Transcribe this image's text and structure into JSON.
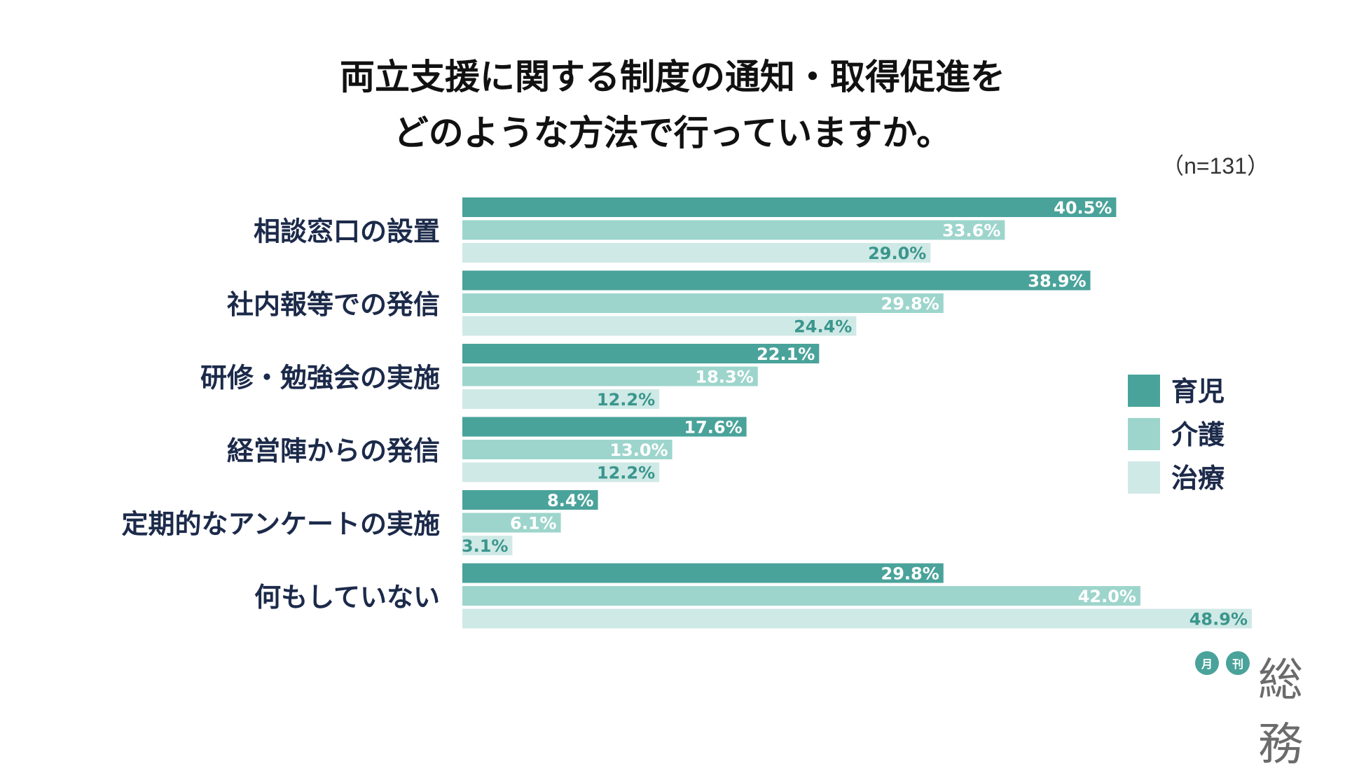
{
  "title_lines": [
    "両立支援に関する制度の通知・取得促進を",
    "どのような方法で行っていますか。"
  ],
  "n_label": "（n=131）",
  "logo": {
    "badge1": "月",
    "badge2": "刊",
    "word": "総務"
  },
  "colors": {
    "育児": "#4aa39a",
    "介護": "#9dd5cc",
    "治療": "#cfe9e6",
    "category_text": "#1c2a4a",
    "label_dark": "#ffffff",
    "label_light": "#3a968c"
  },
  "chart_data": {
    "type": "bar",
    "orientation": "horizontal",
    "categories": [
      "相談窓口の設置",
      "社内報等での発信",
      "研修・勉強会の実施",
      "経営陣からの発信",
      "定期的なアンケートの実施",
      "何もしていない"
    ],
    "series": [
      {
        "name": "育児",
        "values": [
          40.5,
          38.9,
          22.1,
          17.6,
          8.4,
          29.8
        ]
      },
      {
        "name": "介護",
        "values": [
          33.6,
          29.8,
          18.3,
          13.0,
          6.1,
          42.0
        ]
      },
      {
        "name": "治療",
        "values": [
          29.0,
          24.4,
          12.2,
          12.2,
          3.1,
          48.9
        ]
      }
    ],
    "value_labels": [
      [
        "40.5%",
        "38.9%",
        "22.1%",
        "17.6%",
        "8.4%",
        "29.8%"
      ],
      [
        "33.6%",
        "29.8%",
        "18.3%",
        "13.0%",
        "6.1%",
        "42.0%"
      ],
      [
        "29.0%",
        "24.4%",
        "12.2%",
        "12.2%",
        "3.1%",
        "48.9%"
      ]
    ],
    "xlim": [
      0,
      48.9
    ],
    "grid": false,
    "legend": [
      "育児",
      "介護",
      "治療"
    ],
    "legend_position": "right"
  }
}
